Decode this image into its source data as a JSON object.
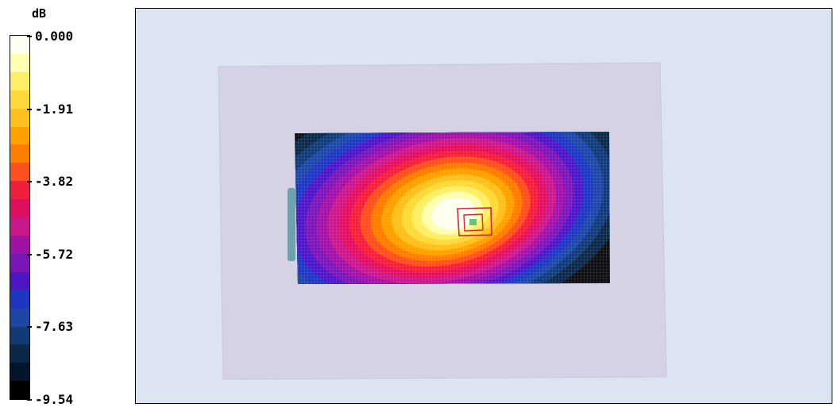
{
  "chart_data": {
    "type": "heatmap",
    "colorbar": {
      "unit": "dB",
      "ticks": [
        "0.000",
        "-1.91",
        "-3.82",
        "-5.72",
        "-7.63",
        "-9.54"
      ],
      "range": [
        -9.54,
        0.0
      ],
      "levels": [
        "#fffff0",
        "#ffffb0",
        "#ffee66",
        "#ffd93a",
        "#ffbf1f",
        "#ffa200",
        "#ff7e00",
        "#ff5020",
        "#f0203a",
        "#e01060",
        "#c8188a",
        "#a012a6",
        "#7a16b6",
        "#4c16c4",
        "#1f36c0",
        "#1e46a6",
        "#123a76",
        "#0c2848",
        "#06162a",
        "#000000"
      ]
    },
    "field": {
      "peak_value_db": 0.0,
      "min_value_db": -9.54
    }
  }
}
